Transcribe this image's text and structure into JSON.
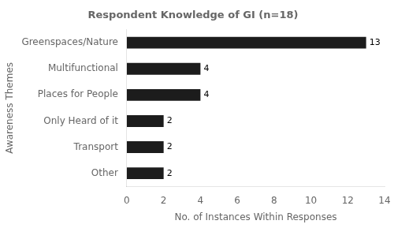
{
  "chart_data": {
    "type": "bar",
    "orientation": "horizontal",
    "title": "Respondent Knowledge of GI (n=18)",
    "categories": [
      "Greenspaces/Nature",
      "Multifunctional",
      "Places for People",
      "Only Heard of it",
      "Transport",
      "Other"
    ],
    "values": [
      13,
      4,
      4,
      2,
      2,
      2
    ],
    "color": "#1c1c1c",
    "xlabel": "No. of Instances Within Responses",
    "ylabel": "Awareness Themes",
    "xlim": [
      0,
      14
    ],
    "xticks": [
      0,
      2,
      4,
      6,
      8,
      10,
      12,
      14
    ],
    "grid": false,
    "data_labels": true
  }
}
